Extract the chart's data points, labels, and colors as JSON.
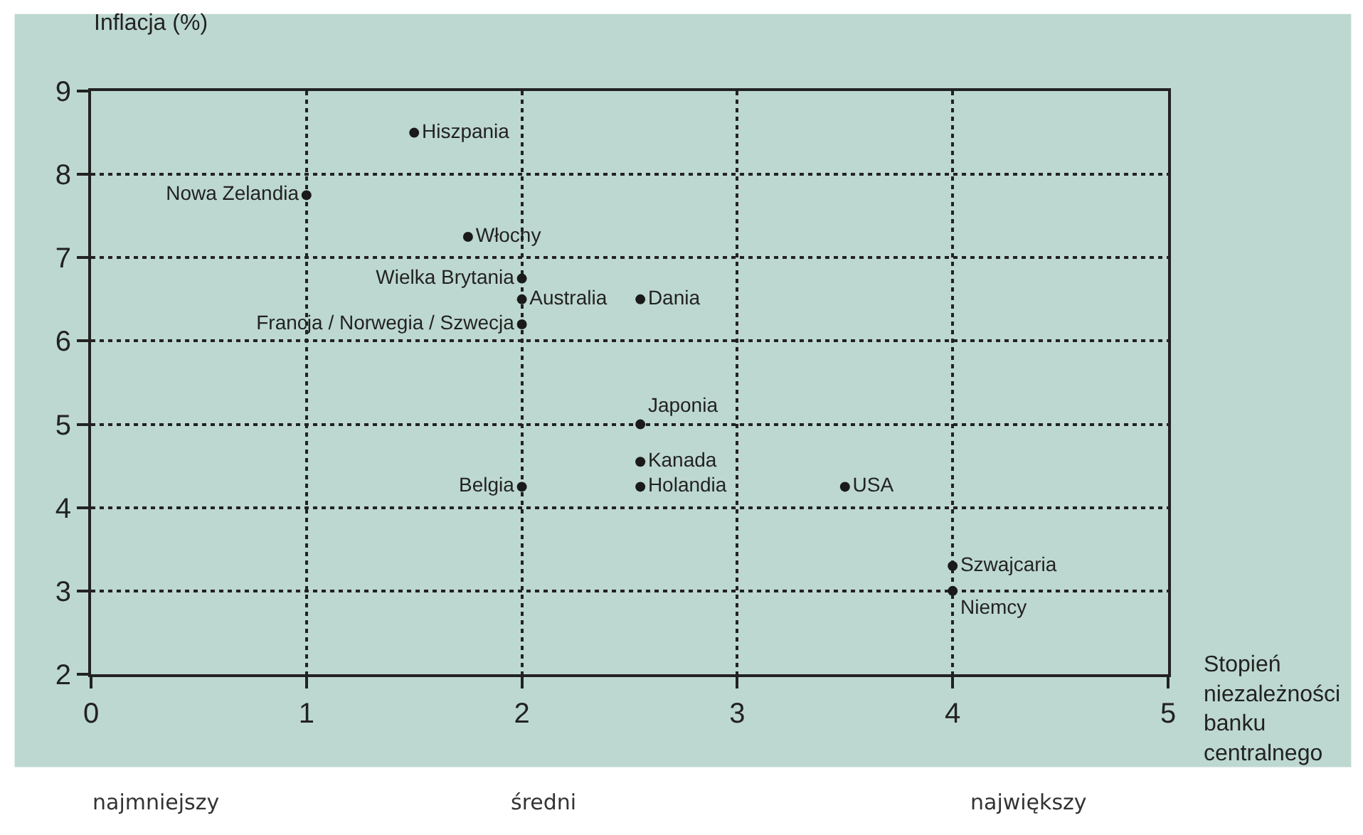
{
  "chart_data": {
    "type": "scatter",
    "ylabel": "Inflacja (%)",
    "xlabel": "Stopień\nniezależności\nbanku\ncentralnego",
    "xlim": [
      0,
      5
    ],
    "xticks": [
      0,
      1,
      2,
      3,
      4,
      5
    ],
    "ylim": [
      2,
      9
    ],
    "yticks": [
      2,
      3,
      4,
      5,
      6,
      7,
      8,
      9
    ],
    "grid": true,
    "legend": false,
    "marker": "circle",
    "series": [
      {
        "name": "Hiszpania",
        "color": "#1a1a1a",
        "x": [
          1.5
        ],
        "values": [
          8.5
        ]
      },
      {
        "name": "Nowa Zelandia",
        "color": "#1a1a1a",
        "x": [
          1
        ],
        "values": [
          7.75
        ]
      },
      {
        "name": "Włochy",
        "color": "#1a1a1a",
        "x": [
          1.75
        ],
        "values": [
          7.25
        ]
      },
      {
        "name": "Wielka Brytania",
        "color": "#1a1a1a",
        "x": [
          2
        ],
        "values": [
          6.75
        ]
      },
      {
        "name": "Australia",
        "color": "#1a1a1a",
        "x": [
          2
        ],
        "values": [
          6.5
        ]
      },
      {
        "name": "Francja / Norwegia / Szwecja",
        "color": "#1a1a1a",
        "x": [
          2
        ],
        "values": [
          6.2
        ]
      },
      {
        "name": "Dania",
        "color": "#1a1a1a",
        "x": [
          2.55
        ],
        "values": [
          6.5
        ]
      },
      {
        "name": "Japonia",
        "color": "#1a1a1a",
        "x": [
          2.55
        ],
        "values": [
          5
        ]
      },
      {
        "name": "Kanada",
        "color": "#1a1a1a",
        "x": [
          2.55
        ],
        "values": [
          4.55
        ]
      },
      {
        "name": "Holandia",
        "color": "#1a1a1a",
        "x": [
          2.55
        ],
        "values": [
          4.25
        ]
      },
      {
        "name": "Belgia",
        "color": "#1a1a1a",
        "x": [
          2
        ],
        "values": [
          4.25
        ]
      },
      {
        "name": "USA",
        "color": "#1a1a1a",
        "x": [
          3.5
        ],
        "values": [
          4.25
        ]
      },
      {
        "name": "Szwajcaria",
        "color": "#1a1a1a",
        "x": [
          4
        ],
        "values": [
          3.3
        ]
      },
      {
        "name": "Niemcy",
        "color": "#1a1a1a",
        "x": [
          4
        ],
        "values": [
          3
        ]
      }
    ],
    "annotations": [
      "najmniejszy",
      "średni",
      "największy"
    ]
  }
}
